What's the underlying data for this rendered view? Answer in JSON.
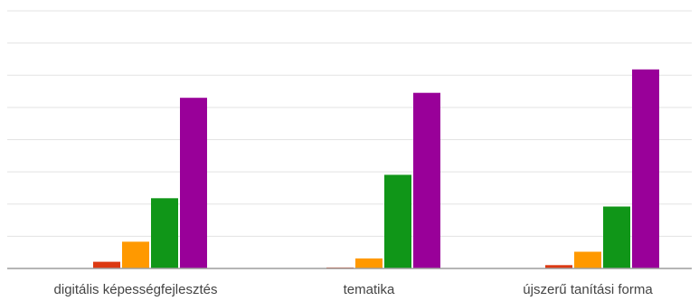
{
  "chart_data": {
    "type": "bar",
    "title": "",
    "xlabel": "",
    "ylabel": "",
    "categories": [
      "digitális képességfejlesztés",
      "tematika",
      "újszerű tanítási forma"
    ],
    "series": [
      {
        "color": "#3366cc",
        "values": [
          0,
          0,
          0
        ]
      },
      {
        "color": "#dc3912",
        "values": [
          2,
          0.3,
          1
        ]
      },
      {
        "color": "#ff9900",
        "values": [
          8,
          3,
          5
        ]
      },
      {
        "color": "#109618",
        "values": [
          21,
          28,
          18.5
        ]
      },
      {
        "color": "#990099",
        "values": [
          51,
          52.5,
          59.5
        ]
      }
    ],
    "ylim": [
      0,
      77
    ],
    "grid": true,
    "legend": "none"
  }
}
